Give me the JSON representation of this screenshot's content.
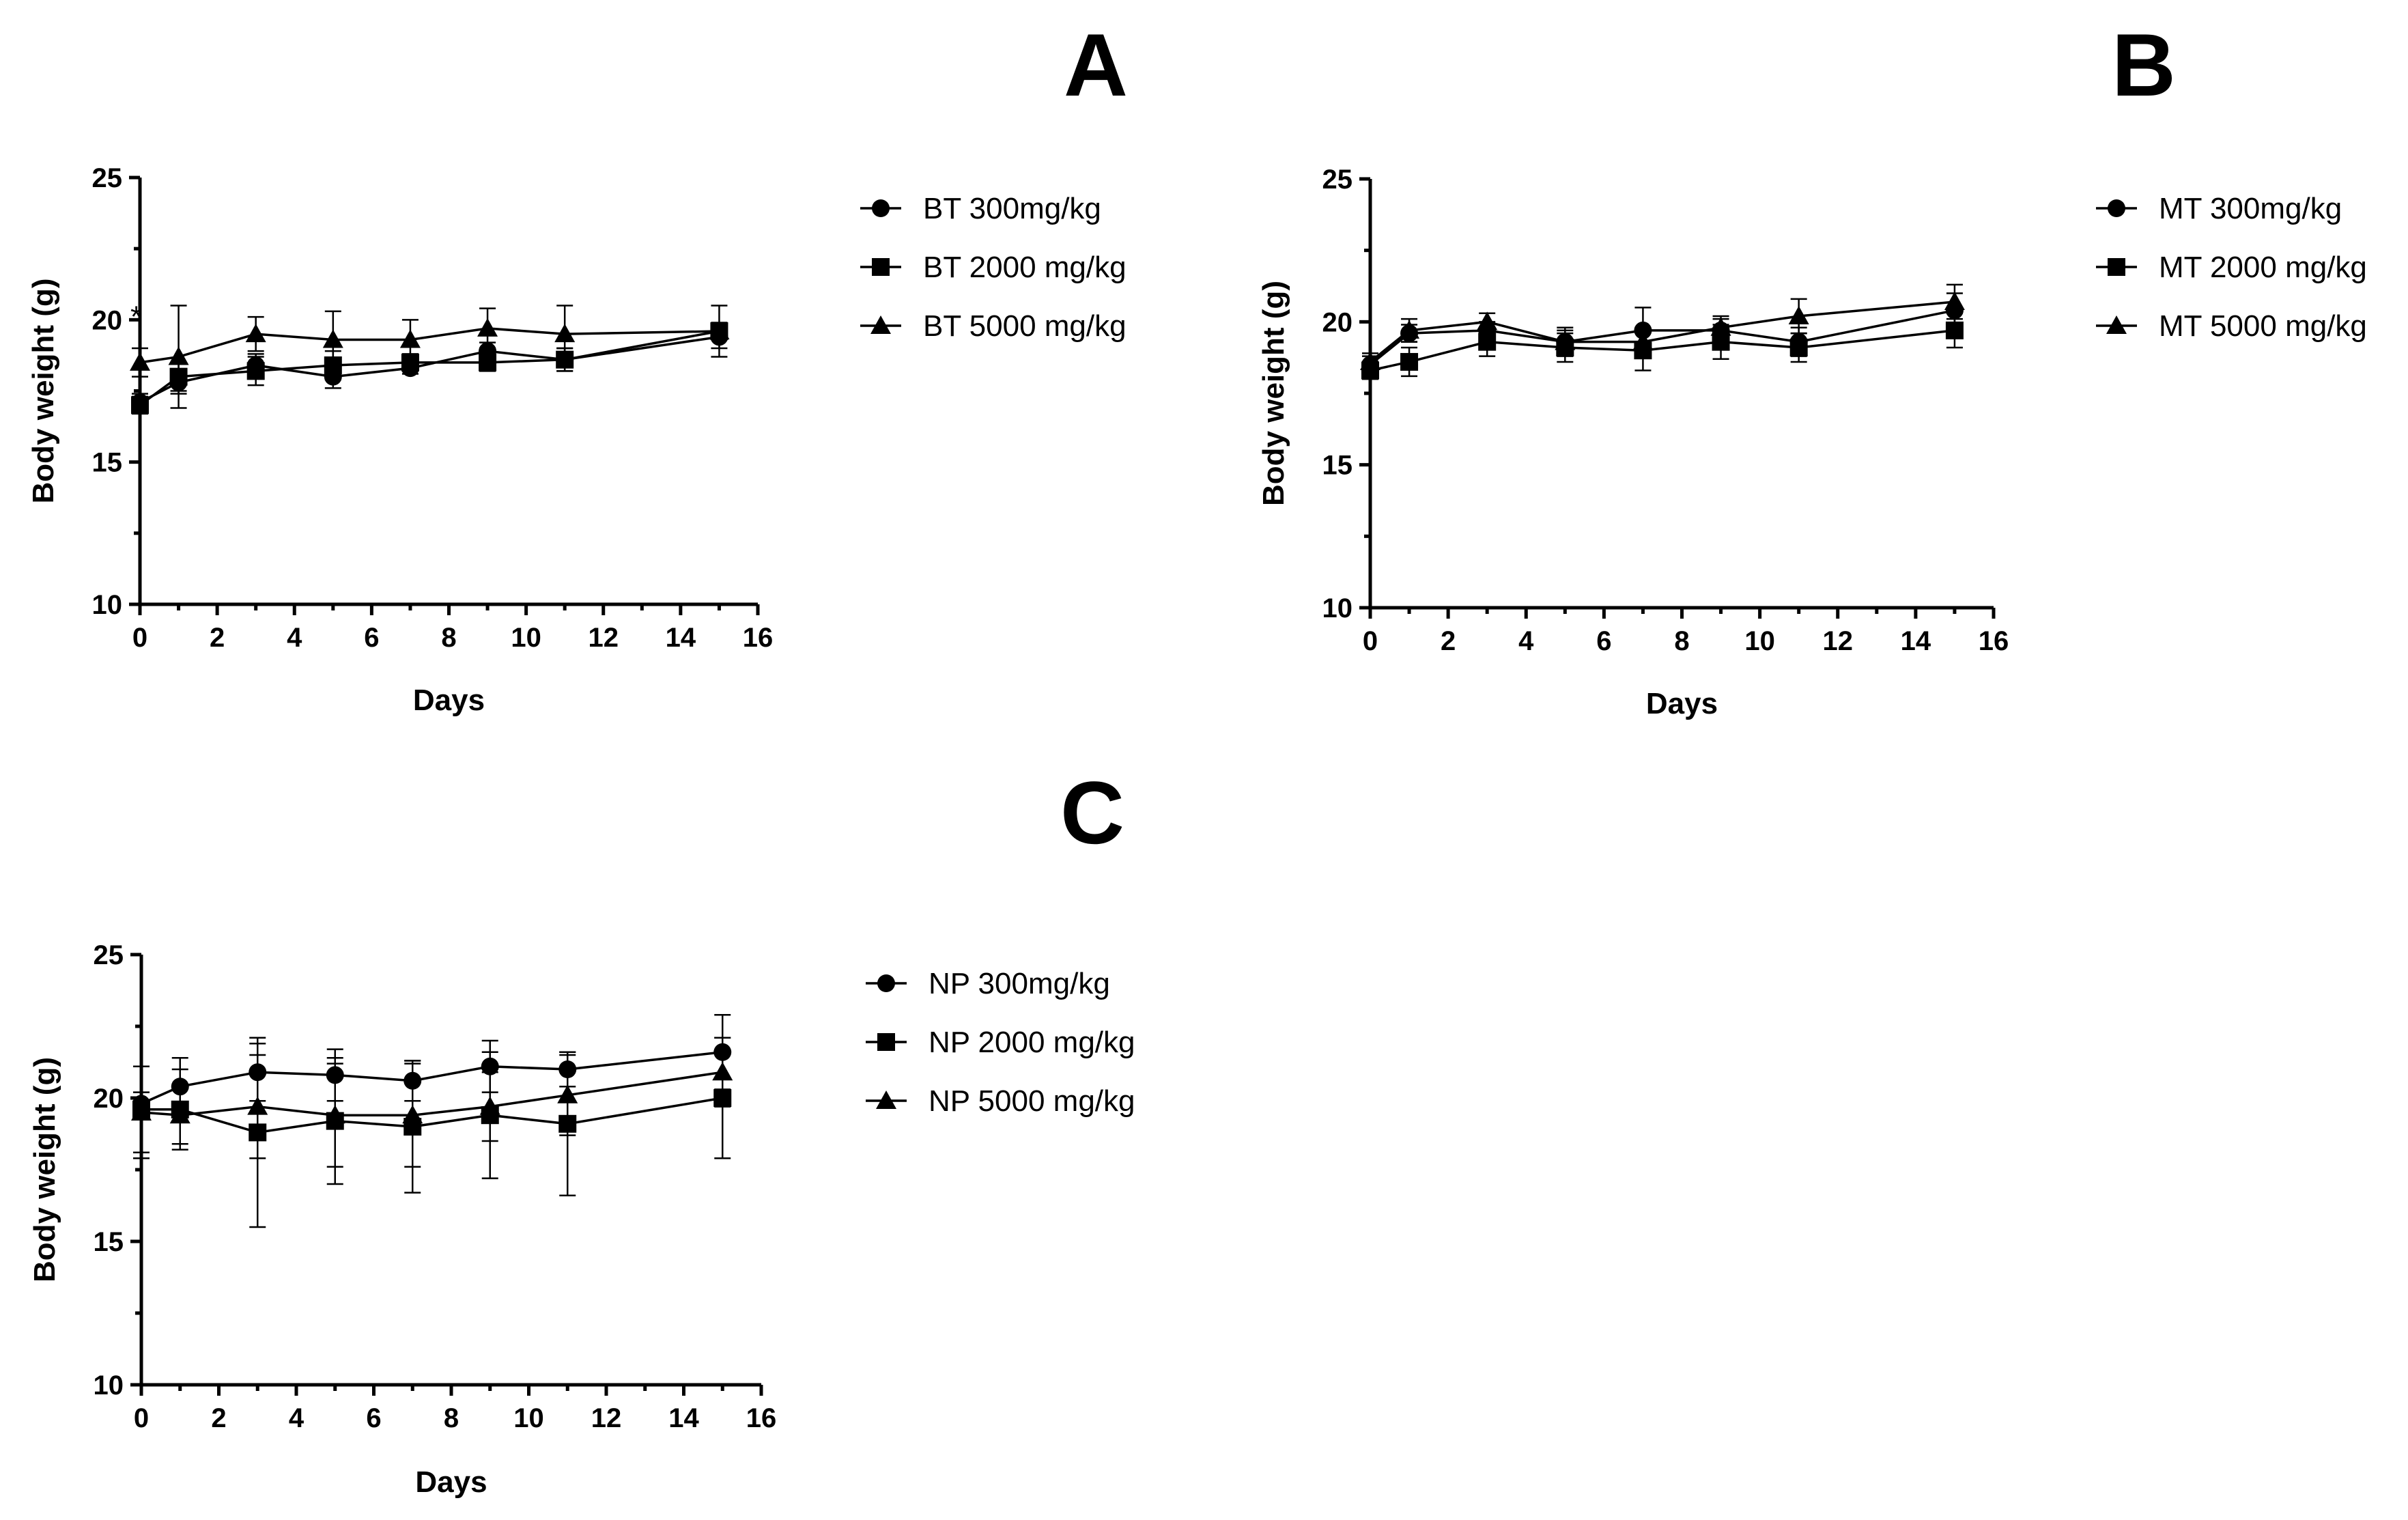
{
  "chart_data": [
    {
      "type": "line",
      "panel_label": "A",
      "xlabel": "Days",
      "ylabel": "Body weight (g)",
      "xlim": [
        0,
        16
      ],
      "ylim": [
        10,
        25
      ],
      "x_ticks": [
        "0",
        "2",
        "4",
        "6",
        "8",
        "10",
        "12",
        "14",
        "16"
      ],
      "y_ticks": [
        "10",
        "15",
        "20",
        "25"
      ],
      "x": [
        0,
        1,
        3,
        5,
        7,
        9,
        11,
        15
      ],
      "legend_position": "right",
      "annotations": [
        {
          "text": "*",
          "x": 0,
          "y": 19.8
        }
      ],
      "series": [
        {
          "name": "BT 300mg/kg",
          "marker": "circle",
          "values": [
            17.1,
            17.8,
            18.4,
            18.0,
            18.3,
            18.9,
            18.6,
            19.4
          ],
          "errors": [
            0.3,
            0.4,
            0.4,
            0.4,
            0.2,
            0.3,
            0.4,
            0.4
          ]
        },
        {
          "name": "BT 2000 mg/kg",
          "marker": "square",
          "values": [
            17.0,
            18.0,
            18.2,
            18.4,
            18.5,
            18.5,
            18.6,
            19.6
          ],
          "errors": [
            0.3,
            0.5,
            0.5,
            0.5,
            0.3,
            0.3,
            0.4,
            0.3
          ]
        },
        {
          "name": "BT 5000 mg/kg",
          "marker": "triangle",
          "values": [
            18.5,
            18.7,
            19.5,
            19.3,
            19.3,
            19.7,
            19.5,
            19.6
          ],
          "errors": [
            0.5,
            1.8,
            0.6,
            1.0,
            0.7,
            0.7,
            1.0,
            0.9
          ]
        }
      ]
    },
    {
      "type": "line",
      "panel_label": "B",
      "xlabel": "Days",
      "ylabel": "Body weight (g)",
      "xlim": [
        0,
        16
      ],
      "ylim": [
        10,
        25
      ],
      "x_ticks": [
        "0",
        "2",
        "4",
        "6",
        "8",
        "10",
        "12",
        "14",
        "16"
      ],
      "y_ticks": [
        "10",
        "15",
        "20",
        "25"
      ],
      "x": [
        0,
        1,
        3,
        5,
        7,
        9,
        11,
        15
      ],
      "legend_position": "right",
      "series": [
        {
          "name": "MT 300mg/kg",
          "marker": "circle",
          "values": [
            18.5,
            19.6,
            19.7,
            19.3,
            19.7,
            19.7,
            19.3,
            20.4
          ],
          "errors": [
            0.3,
            0.3,
            0.3,
            0.4,
            0.8,
            0.4,
            0.5,
            0.6
          ]
        },
        {
          "name": "MT 2000 mg/kg",
          "marker": "square",
          "values": [
            18.3,
            18.6,
            19.3,
            19.1,
            19.0,
            19.3,
            19.1,
            19.7
          ],
          "errors": [
            0.3,
            0.5,
            0.5,
            0.5,
            0.7,
            0.6,
            0.5,
            0.6
          ]
        },
        {
          "name": "MT 5000 mg/kg",
          "marker": "triangle",
          "values": [
            18.6,
            19.7,
            20.0,
            19.3,
            19.3,
            19.8,
            20.2,
            20.7
          ],
          "errors": [
            0.3,
            0.4,
            0.3,
            0.5,
            0.5,
            0.4,
            0.6,
            0.6
          ]
        }
      ]
    },
    {
      "type": "line",
      "panel_label": "C",
      "xlabel": "Days",
      "ylabel": "Body weight (g)",
      "xlim": [
        0,
        16
      ],
      "ylim": [
        10,
        25
      ],
      "x_ticks": [
        "0",
        "2",
        "4",
        "6",
        "8",
        "10",
        "12",
        "14",
        "16"
      ],
      "y_ticks": [
        "10",
        "15",
        "20",
        "25"
      ],
      "x": [
        0,
        1,
        3,
        5,
        7,
        9,
        11,
        15
      ],
      "legend_position": "right",
      "series": [
        {
          "name": "NP 300mg/kg",
          "marker": "circle",
          "values": [
            19.8,
            20.4,
            20.9,
            20.8,
            20.6,
            21.1,
            21.0,
            21.6
          ],
          "errors": [
            0.4,
            1.0,
            1.0,
            0.9,
            0.7,
            0.9,
            0.6,
            1.3
          ]
        },
        {
          "name": "NP 2000 mg/kg",
          "marker": "square",
          "values": [
            19.6,
            19.6,
            18.8,
            19.2,
            19.0,
            19.4,
            19.1,
            20.0
          ],
          "errors": [
            1.5,
            1.4,
            3.3,
            2.2,
            2.3,
            2.2,
            2.5,
            2.1
          ]
        },
        {
          "name": "NP 5000 mg/kg",
          "marker": "triangle",
          "values": [
            19.5,
            19.4,
            19.7,
            19.4,
            19.4,
            19.7,
            20.1,
            20.9
          ],
          "errors": [
            1.6,
            1.0,
            1.8,
            1.8,
            1.8,
            1.2,
            1.4,
            1.2
          ]
        }
      ]
    }
  ]
}
